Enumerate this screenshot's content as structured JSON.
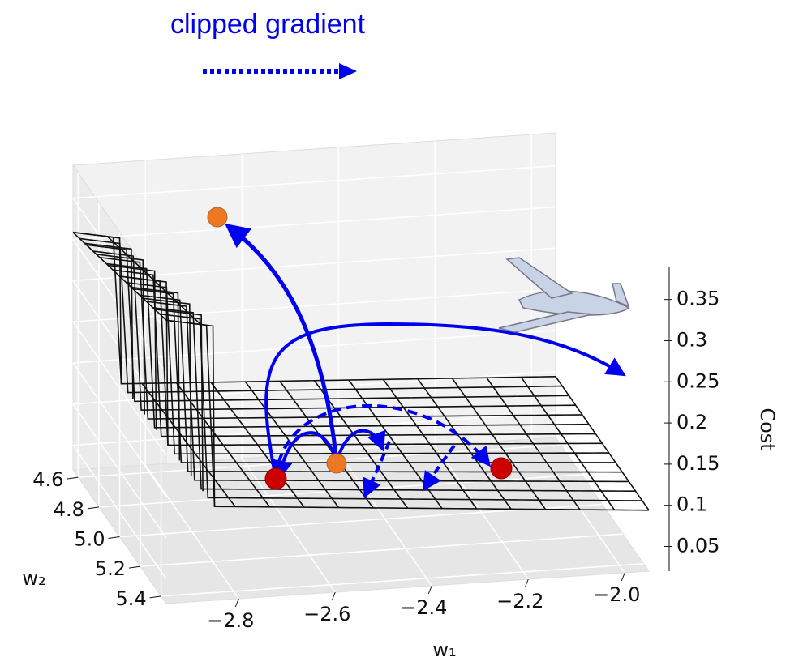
{
  "chart_data": {
    "type": "surface3d",
    "annotation": "clipped gradient",
    "xlabel": "w₁",
    "ylabel": "w₂",
    "zlabel": "Cost",
    "xlim": [
      -2.95,
      -1.95
    ],
    "ylim": [
      4.55,
      5.45
    ],
    "zlim": [
      0.02,
      0.39
    ],
    "xticks": [
      {
        "value": -2.8,
        "label": "−2.8"
      },
      {
        "value": -2.6,
        "label": "−2.6"
      },
      {
        "value": -2.4,
        "label": "−2.4"
      },
      {
        "value": -2.2,
        "label": "−2.2"
      },
      {
        "value": -2.0,
        "label": "−2.0"
      }
    ],
    "yticks": [
      4.6,
      4.8,
      {
        "value": 5.0,
        "label": "5.0"
      },
      5.2,
      5.4
    ],
    "zticks": [
      0.05,
      0.1,
      0.15,
      0.2,
      0.25,
      0.3,
      0.35
    ],
    "grid": true
  }
}
